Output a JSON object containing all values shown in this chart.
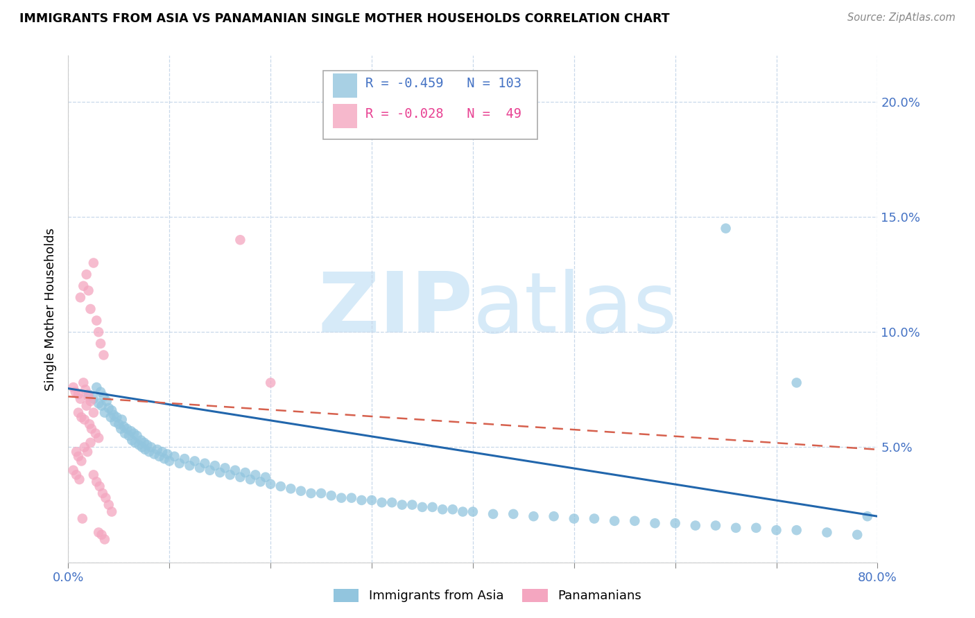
{
  "title": "IMMIGRANTS FROM ASIA VS PANAMANIAN SINGLE MOTHER HOUSEHOLDS CORRELATION CHART",
  "source": "Source: ZipAtlas.com",
  "ylabel_label": "Single Mother Households",
  "legend_label1": "Immigrants from Asia",
  "legend_label2": "Panamanians",
  "r1": "-0.459",
  "n1": "103",
  "r2": "-0.028",
  "n2": "49",
  "xlim": [
    0,
    0.8
  ],
  "ylim": [
    0,
    0.22
  ],
  "x_ticks": [
    0.0,
    0.1,
    0.2,
    0.3,
    0.4,
    0.5,
    0.6,
    0.7,
    0.8
  ],
  "y_ticks": [
    0.0,
    0.05,
    0.1,
    0.15,
    0.2
  ],
  "y_tick_labels": [
    "",
    "5.0%",
    "10.0%",
    "15.0%",
    "20.0%"
  ],
  "color_blue": "#92c5de",
  "color_pink": "#f4a6c0",
  "color_blue_line": "#2166ac",
  "color_pink_line": "#d6604d",
  "watermark_color": "#d6eaf8",
  "blue_scatter_x": [
    0.02,
    0.025,
    0.028,
    0.03,
    0.032,
    0.033,
    0.035,
    0.036,
    0.038,
    0.04,
    0.042,
    0.043,
    0.045,
    0.046,
    0.048,
    0.05,
    0.052,
    0.053,
    0.055,
    0.056,
    0.058,
    0.06,
    0.062,
    0.063,
    0.065,
    0.066,
    0.068,
    0.07,
    0.072,
    0.073,
    0.075,
    0.076,
    0.078,
    0.08,
    0.082,
    0.085,
    0.088,
    0.09,
    0.093,
    0.095,
    0.098,
    0.1,
    0.105,
    0.11,
    0.115,
    0.12,
    0.125,
    0.13,
    0.135,
    0.14,
    0.145,
    0.15,
    0.155,
    0.16,
    0.165,
    0.17,
    0.175,
    0.18,
    0.185,
    0.19,
    0.195,
    0.2,
    0.21,
    0.22,
    0.23,
    0.24,
    0.25,
    0.26,
    0.27,
    0.28,
    0.29,
    0.3,
    0.31,
    0.32,
    0.33,
    0.34,
    0.35,
    0.36,
    0.37,
    0.38,
    0.39,
    0.4,
    0.42,
    0.44,
    0.46,
    0.48,
    0.5,
    0.52,
    0.54,
    0.56,
    0.58,
    0.6,
    0.62,
    0.64,
    0.66,
    0.68,
    0.7,
    0.72,
    0.75,
    0.78,
    0.65,
    0.72,
    0.79
  ],
  "blue_scatter_y": [
    0.073,
    0.071,
    0.076,
    0.069,
    0.074,
    0.068,
    0.072,
    0.065,
    0.07,
    0.067,
    0.063,
    0.066,
    0.064,
    0.061,
    0.063,
    0.06,
    0.058,
    0.062,
    0.059,
    0.056,
    0.058,
    0.055,
    0.057,
    0.053,
    0.056,
    0.052,
    0.055,
    0.051,
    0.053,
    0.05,
    0.052,
    0.049,
    0.051,
    0.048,
    0.05,
    0.047,
    0.049,
    0.046,
    0.048,
    0.045,
    0.047,
    0.044,
    0.046,
    0.043,
    0.045,
    0.042,
    0.044,
    0.041,
    0.043,
    0.04,
    0.042,
    0.039,
    0.041,
    0.038,
    0.04,
    0.037,
    0.039,
    0.036,
    0.038,
    0.035,
    0.037,
    0.034,
    0.033,
    0.032,
    0.031,
    0.03,
    0.03,
    0.029,
    0.028,
    0.028,
    0.027,
    0.027,
    0.026,
    0.026,
    0.025,
    0.025,
    0.024,
    0.024,
    0.023,
    0.023,
    0.022,
    0.022,
    0.021,
    0.021,
    0.02,
    0.02,
    0.019,
    0.019,
    0.018,
    0.018,
    0.017,
    0.017,
    0.016,
    0.016,
    0.015,
    0.015,
    0.014,
    0.014,
    0.013,
    0.012,
    0.145,
    0.078,
    0.02
  ],
  "pink_scatter_x": [
    0.005,
    0.007,
    0.01,
    0.012,
    0.015,
    0.017,
    0.02,
    0.022,
    0.01,
    0.013,
    0.016,
    0.018,
    0.021,
    0.023,
    0.025,
    0.027,
    0.03,
    0.012,
    0.015,
    0.018,
    0.02,
    0.022,
    0.025,
    0.028,
    0.03,
    0.032,
    0.035,
    0.008,
    0.01,
    0.013,
    0.016,
    0.019,
    0.022,
    0.025,
    0.028,
    0.031,
    0.034,
    0.037,
    0.04,
    0.043,
    0.005,
    0.008,
    0.011,
    0.014,
    0.03,
    0.033,
    0.036,
    0.17,
    0.2
  ],
  "pink_scatter_y": [
    0.076,
    0.074,
    0.073,
    0.071,
    0.078,
    0.075,
    0.072,
    0.07,
    0.065,
    0.063,
    0.062,
    0.068,
    0.06,
    0.058,
    0.065,
    0.056,
    0.054,
    0.115,
    0.12,
    0.125,
    0.118,
    0.11,
    0.13,
    0.105,
    0.1,
    0.095,
    0.09,
    0.048,
    0.046,
    0.044,
    0.05,
    0.048,
    0.052,
    0.038,
    0.035,
    0.033,
    0.03,
    0.028,
    0.025,
    0.022,
    0.04,
    0.038,
    0.036,
    0.019,
    0.013,
    0.012,
    0.01,
    0.14,
    0.078
  ],
  "blue_trend_x": [
    0.0,
    0.8
  ],
  "blue_trend_y": [
    0.0755,
    0.02
  ],
  "pink_trend_x": [
    0.0,
    0.8
  ],
  "pink_trend_y": [
    0.072,
    0.049
  ]
}
